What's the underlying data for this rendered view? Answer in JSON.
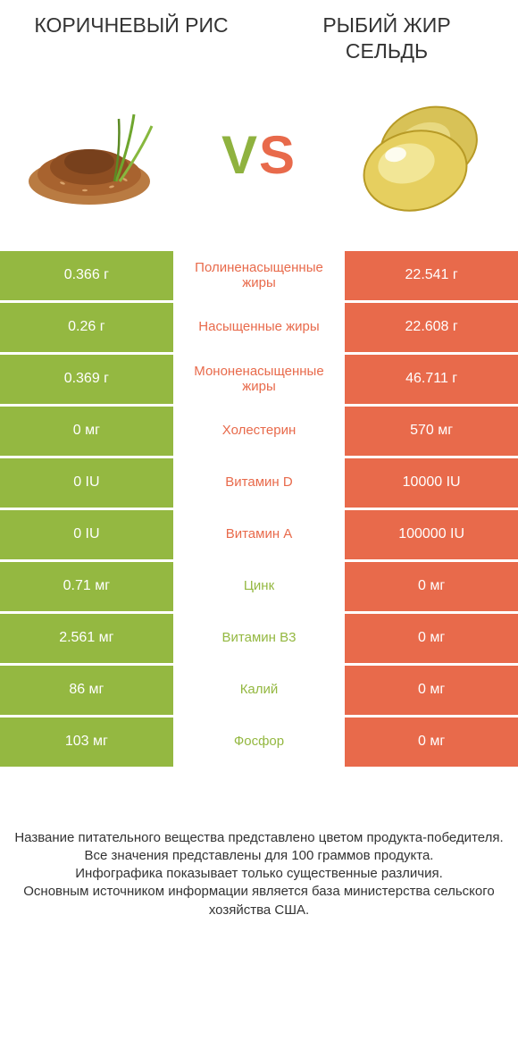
{
  "colors": {
    "left": "#94b841",
    "right": "#e86a4b",
    "text_dark": "#333333",
    "bg": "#ffffff"
  },
  "header": {
    "left_title": "КОРИЧНЕВЫЙ РИС",
    "right_title": "РЫБИЙ ЖИР СЕЛЬДЬ"
  },
  "vs": {
    "v": "V",
    "s": "S"
  },
  "rows": [
    {
      "label": "Полиненасыщенные жиры",
      "left": "0.366 г",
      "right": "22.541 г",
      "winner": "right"
    },
    {
      "label": "Насыщенные жиры",
      "left": "0.26 г",
      "right": "22.608 г",
      "winner": "right"
    },
    {
      "label": "Мононенасыщенные жиры",
      "left": "0.369 г",
      "right": "46.711 г",
      "winner": "right"
    },
    {
      "label": "Холестерин",
      "left": "0 мг",
      "right": "570 мг",
      "winner": "right"
    },
    {
      "label": "Витамин D",
      "left": "0 IU",
      "right": "10000 IU",
      "winner": "right"
    },
    {
      "label": "Витамин A",
      "left": "0 IU",
      "right": "100000 IU",
      "winner": "right"
    },
    {
      "label": "Цинк",
      "left": "0.71 мг",
      "right": "0 мг",
      "winner": "left"
    },
    {
      "label": "Витамин B3",
      "left": "2.561 мг",
      "right": "0 мг",
      "winner": "left"
    },
    {
      "label": "Калий",
      "left": "86 мг",
      "right": "0 мг",
      "winner": "left"
    },
    {
      "label": "Фосфор",
      "left": "103 мг",
      "right": "0 мг",
      "winner": "left"
    }
  ],
  "footnote": "Название питательного вещества представлено цветом продукта-победителя.\nВсе значения представлены для 100 граммов продукта.\nИнфографика показывает только существенные различия.\nОсновным источником информации является база министерства сельского хозяйства США."
}
